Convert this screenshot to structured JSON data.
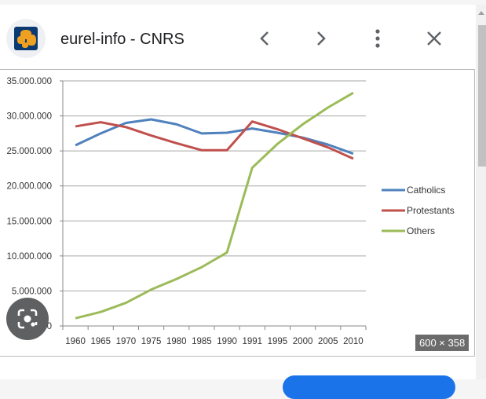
{
  "header": {
    "title": "eurel-info - CNRS"
  },
  "image": {
    "dimensions": "600 × 358"
  },
  "colors": {
    "catholics": "#4f81bd",
    "protestants": "#c0504d",
    "others": "#9bbb59",
    "accent": "#1a73e8"
  },
  "chart_data": {
    "type": "line",
    "title": "",
    "xlabel": "",
    "ylabel": "",
    "categories": [
      "1960",
      "1965",
      "1970",
      "1975",
      "1980",
      "1985",
      "1990",
      "1991",
      "1995",
      "2000",
      "2005",
      "2010"
    ],
    "ylim": [
      0,
      35000000
    ],
    "yticks": [
      0,
      5000000,
      10000000,
      15000000,
      20000000,
      25000000,
      30000000,
      35000000
    ],
    "ytick_labels": [
      "0",
      "5.000.000",
      "10.000.000",
      "15.000.000",
      "20.000.000",
      "25.000.000",
      "30.000.000",
      "35.000.000"
    ],
    "grid": true,
    "legend_position": "right",
    "series": [
      {
        "name": "Catholics",
        "values": [
          25800000,
          27500000,
          29000000,
          29500000,
          28800000,
          27500000,
          27600000,
          28200000,
          27600000,
          26900000,
          25900000,
          24600000
        ]
      },
      {
        "name": "Protestants",
        "values": [
          28500000,
          29100000,
          28400000,
          27200000,
          26100000,
          25100000,
          25100000,
          29200000,
          28100000,
          26800000,
          25500000,
          23900000
        ]
      },
      {
        "name": "Others",
        "values": [
          1100000,
          2000000,
          3300000,
          5200000,
          6700000,
          8400000,
          10500000,
          22600000,
          26000000,
          28800000,
          31200000,
          33300000
        ]
      }
    ]
  }
}
